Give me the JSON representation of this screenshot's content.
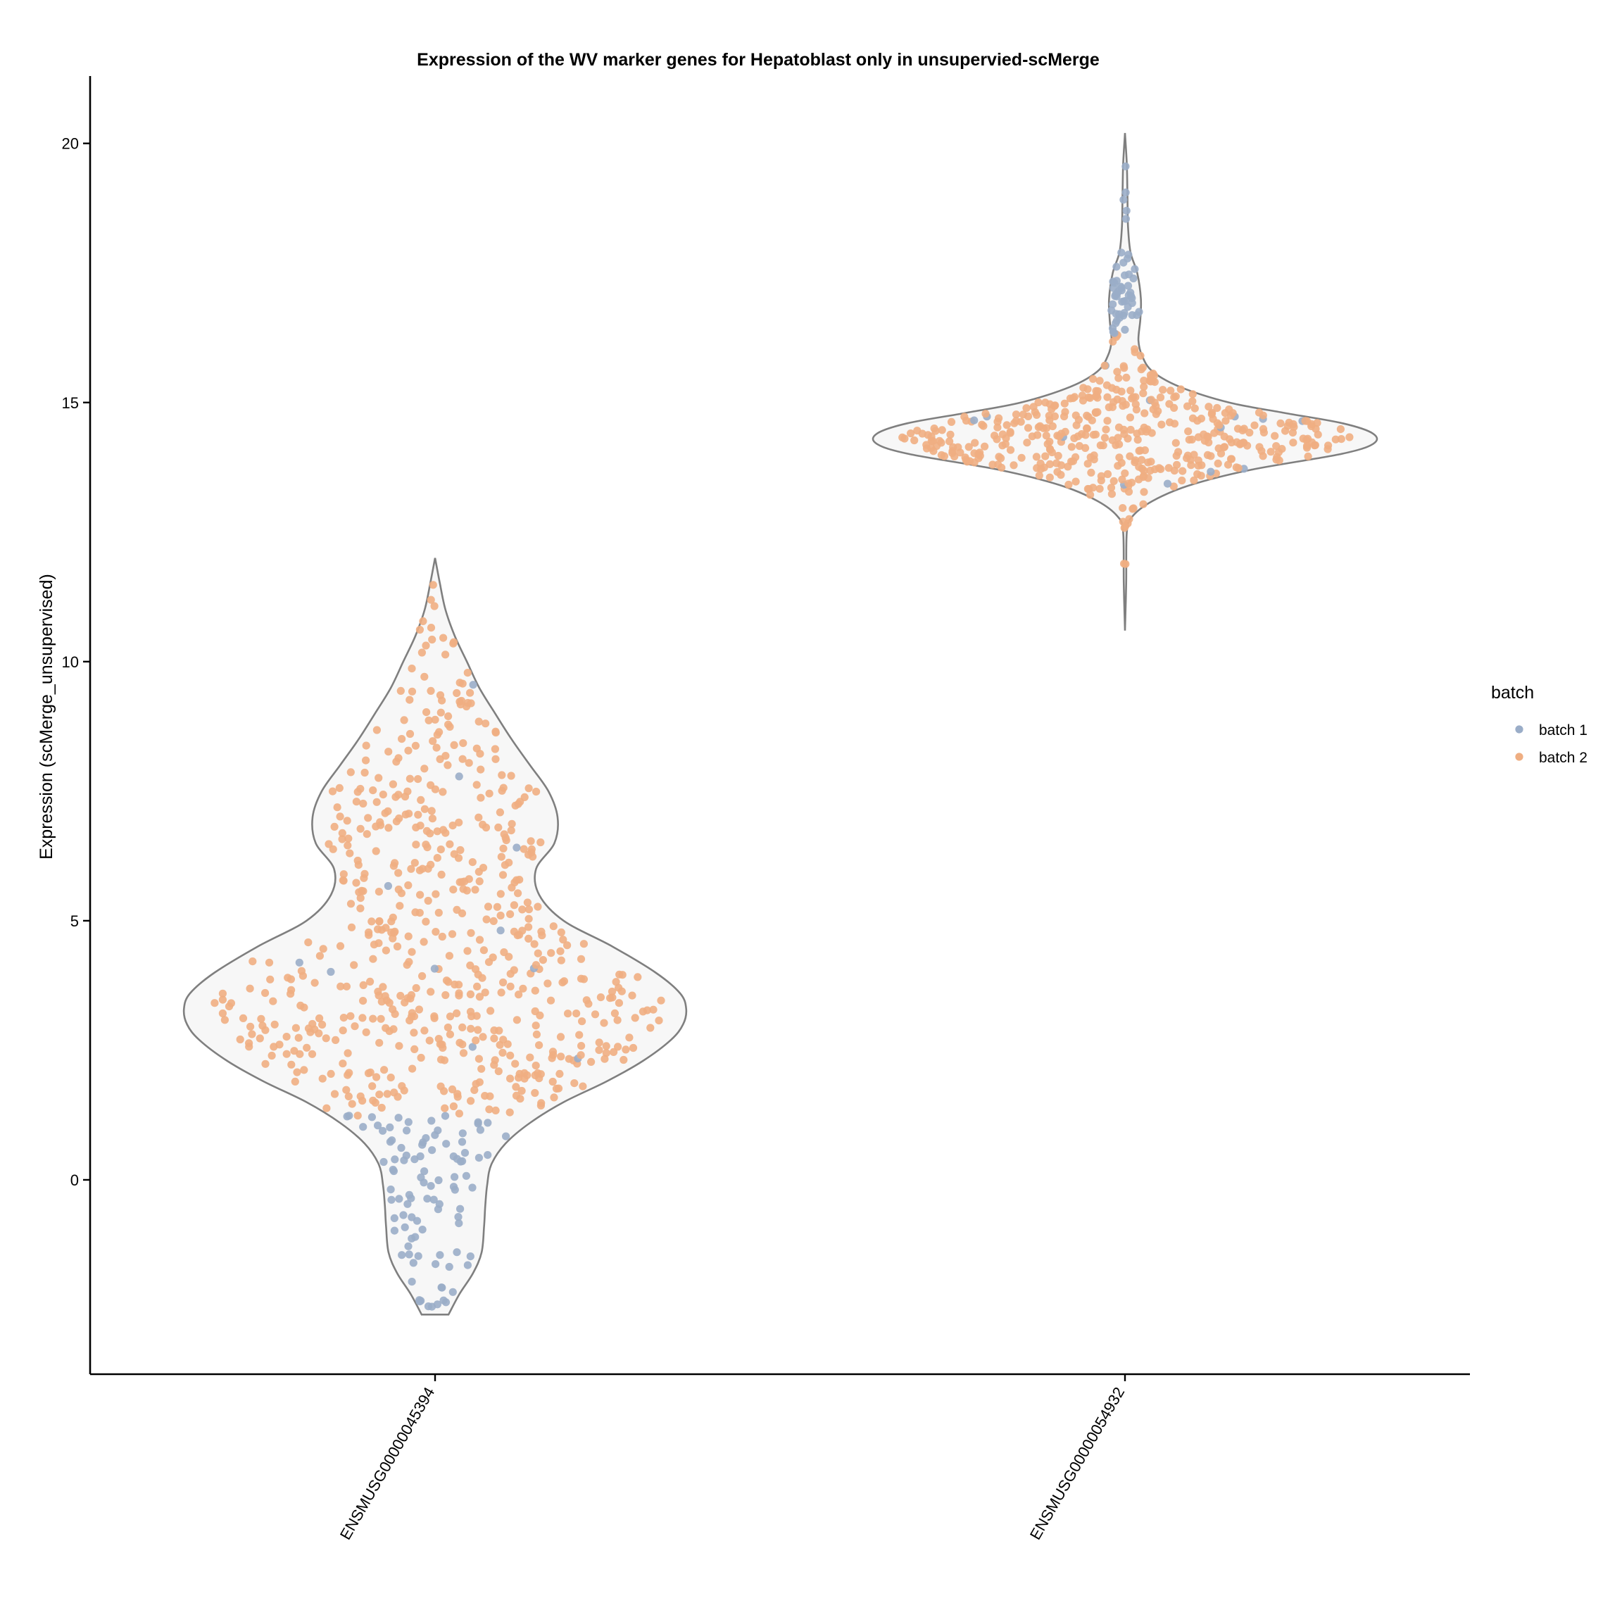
{
  "chart_data": {
    "type": "violin",
    "title": "Expression of the WV marker genes for Hepatoblast only in unsupervied-scMerge",
    "xlabel": "",
    "ylabel": "Expression (scMerge_unsupervised)",
    "categories": [
      "ENSMUSG00000045394",
      "ENSMUSG00000054932"
    ],
    "ylim": [
      -3.75,
      21.3
    ],
    "yticks": [
      0,
      5,
      10,
      15,
      20
    ],
    "grid": false,
    "legend": {
      "title": "batch",
      "position": "right",
      "entries": [
        {
          "label": "batch 1",
          "color": "#9AADC8"
        },
        {
          "label": "batch 2",
          "color": "#EFAE82"
        }
      ]
    },
    "series": [
      {
        "category": "ENSMUSG00000045394",
        "min": -2.6,
        "max": 12.0,
        "density_profile": [
          [
            -2.6,
            0.22
          ],
          [
            -2.2,
            0.4
          ],
          [
            -1.8,
            0.62
          ],
          [
            -1.4,
            0.76
          ],
          [
            -0.9,
            0.8
          ],
          [
            -0.5,
            0.82
          ],
          [
            -0.1,
            0.85
          ],
          [
            0.3,
            0.92
          ],
          [
            0.7,
            1.15
          ],
          [
            1.1,
            1.55
          ],
          [
            1.5,
            2.1
          ],
          [
            1.9,
            2.8
          ],
          [
            2.3,
            3.4
          ],
          [
            2.7,
            3.85
          ],
          [
            3.0,
            4.05
          ],
          [
            3.3,
            4.1
          ],
          [
            3.6,
            4.0
          ],
          [
            4.0,
            3.6
          ],
          [
            4.5,
            2.9
          ],
          [
            5.0,
            2.1
          ],
          [
            5.5,
            1.7
          ],
          [
            6.0,
            1.65
          ],
          [
            6.5,
            1.95
          ],
          [
            7.0,
            2.0
          ],
          [
            7.5,
            1.85
          ],
          [
            8.0,
            1.55
          ],
          [
            8.5,
            1.25
          ],
          [
            9.0,
            0.98
          ],
          [
            9.5,
            0.72
          ],
          [
            10.0,
            0.52
          ],
          [
            10.5,
            0.32
          ],
          [
            11.0,
            0.17
          ],
          [
            11.5,
            0.08
          ],
          [
            12.0,
            0.0
          ]
        ],
        "points": {
          "batch 1": 110,
          "batch 2": 610
        }
      },
      {
        "category": "ENSMUSG00000054932",
        "min": 10.6,
        "max": 20.2,
        "density_profile": [
          [
            10.6,
            0.0
          ],
          [
            11.5,
            0.02
          ],
          [
            12.5,
            0.03
          ],
          [
            12.8,
            0.12
          ],
          [
            13.1,
            0.45
          ],
          [
            13.4,
            1.05
          ],
          [
            13.7,
            2.05
          ],
          [
            14.0,
            3.5
          ],
          [
            14.2,
            4.05
          ],
          [
            14.4,
            4.05
          ],
          [
            14.6,
            3.55
          ],
          [
            14.8,
            2.6
          ],
          [
            15.0,
            1.7
          ],
          [
            15.3,
            0.9
          ],
          [
            15.6,
            0.45
          ],
          [
            15.9,
            0.28
          ],
          [
            16.2,
            0.22
          ],
          [
            16.6,
            0.25
          ],
          [
            17.0,
            0.26
          ],
          [
            17.5,
            0.2
          ],
          [
            17.9,
            0.09
          ],
          [
            18.4,
            0.05
          ],
          [
            19.0,
            0.04
          ],
          [
            19.6,
            0.03
          ],
          [
            20.2,
            0.0
          ]
        ],
        "points": {
          "batch 1": 70,
          "batch 2": 430
        }
      }
    ]
  }
}
